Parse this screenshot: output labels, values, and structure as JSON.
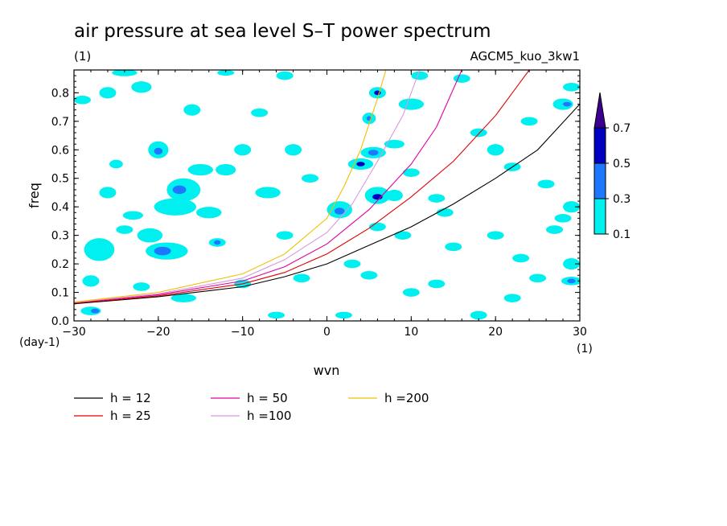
{
  "chart_data": {
    "type": "contour",
    "title": "air pressure at sea level S–T power spectrum",
    "units_label": "(1)",
    "experiment": "AGCM5_kuo_3kw1",
    "xlabel": "wvn",
    "ylabel": "freq",
    "x_unit_label": "(1)",
    "y_unit_label": "(day-1)",
    "xlim": [
      -30,
      30
    ],
    "ylim": [
      0,
      0.88
    ],
    "x_ticks": [
      -30,
      -20,
      -10,
      0,
      10,
      20,
      30
    ],
    "x_tick_labels": [
      "−30",
      "−20",
      "−10",
      "0",
      "10",
      "20",
      "30"
    ],
    "y_ticks": [
      0.0,
      0.1,
      0.2,
      0.3,
      0.4,
      0.5,
      0.6,
      0.7,
      0.8
    ],
    "y_tick_labels": [
      "0.0",
      "0.1",
      "0.2",
      "0.3",
      "0.4",
      "0.5",
      "0.6",
      "0.7",
      "0.8"
    ],
    "colorbar": {
      "levels": [
        0.1,
        0.3,
        0.5,
        0.7
      ],
      "labels": [
        "0.1",
        "0.3",
        "0.5",
        "0.7"
      ],
      "colors": [
        "#00f0f0",
        "#1e78ff",
        "#0000c0",
        "#3c0090"
      ]
    },
    "dispersion_curves": [
      {
        "name": "h = 12",
        "color": "#000000",
        "points": [
          [
            -30,
            0.06
          ],
          [
            -20,
            0.085
          ],
          [
            -10,
            0.12
          ],
          [
            -5,
            0.155
          ],
          [
            0,
            0.2
          ],
          [
            5,
            0.265
          ],
          [
            10,
            0.33
          ],
          [
            15,
            0.41
          ],
          [
            20,
            0.5
          ],
          [
            25,
            0.6
          ],
          [
            30,
            0.76
          ]
        ]
      },
      {
        "name": "h = 25",
        "color": "#e00000",
        "points": [
          [
            -30,
            0.062
          ],
          [
            -20,
            0.088
          ],
          [
            -10,
            0.13
          ],
          [
            -5,
            0.17
          ],
          [
            0,
            0.235
          ],
          [
            5,
            0.325
          ],
          [
            10,
            0.435
          ],
          [
            15,
            0.56
          ],
          [
            20,
            0.72
          ],
          [
            24,
            0.88
          ]
        ]
      },
      {
        "name": "h = 50",
        "color": "#e000a0",
        "points": [
          [
            -30,
            0.064
          ],
          [
            -20,
            0.092
          ],
          [
            -10,
            0.14
          ],
          [
            -5,
            0.19
          ],
          [
            0,
            0.27
          ],
          [
            5,
            0.39
          ],
          [
            10,
            0.55
          ],
          [
            13,
            0.68
          ],
          [
            16,
            0.88
          ]
        ]
      },
      {
        "name": "h =100",
        "color": "#d898e0",
        "points": [
          [
            -30,
            0.065
          ],
          [
            -20,
            0.095
          ],
          [
            -10,
            0.15
          ],
          [
            -5,
            0.215
          ],
          [
            0,
            0.31
          ],
          [
            3,
            0.41
          ],
          [
            6,
            0.56
          ],
          [
            9,
            0.72
          ],
          [
            11,
            0.88
          ]
        ]
      },
      {
        "name": "h =200",
        "color": "#f0c000",
        "points": [
          [
            -30,
            0.066
          ],
          [
            -20,
            0.1
          ],
          [
            -10,
            0.165
          ],
          [
            -5,
            0.235
          ],
          [
            0,
            0.36
          ],
          [
            2,
            0.47
          ],
          [
            4,
            0.6
          ],
          [
            6,
            0.78
          ],
          [
            7,
            0.88
          ]
        ]
      }
    ],
    "contour_blobs": [
      [
        -28,
        0.035,
        1.2,
        0.015,
        1
      ],
      [
        -27.5,
        0.035,
        0.5,
        0.008,
        2
      ],
      [
        -24,
        0.87,
        1.5,
        0.012,
        1
      ],
      [
        -26,
        0.8,
        1,
        0.02,
        1
      ],
      [
        -29,
        0.775,
        1,
        0.015,
        1
      ],
      [
        -22,
        0.82,
        1.2,
        0.02,
        1
      ],
      [
        -27,
        0.25,
        1.8,
        0.04,
        1
      ],
      [
        -28,
        0.14,
        1,
        0.02,
        1
      ],
      [
        -26,
        0.45,
        1,
        0.02,
        1
      ],
      [
        -25,
        0.55,
        0.8,
        0.015,
        1
      ],
      [
        -23,
        0.37,
        1.2,
        0.015,
        1
      ],
      [
        -21,
        0.3,
        1.5,
        0.025,
        1
      ],
      [
        -19,
        0.245,
        2.5,
        0.03,
        1
      ],
      [
        -19.5,
        0.245,
        1,
        0.015,
        2
      ],
      [
        -20,
        0.6,
        1.2,
        0.03,
        1
      ],
      [
        -20,
        0.595,
        0.5,
        0.012,
        2
      ],
      [
        -17,
        0.46,
        2,
        0.04,
        1
      ],
      [
        -17.5,
        0.46,
        0.8,
        0.015,
        2
      ],
      [
        -15,
        0.53,
        1.5,
        0.02,
        1
      ],
      [
        -18,
        0.4,
        2.5,
        0.03,
        1
      ],
      [
        -14,
        0.38,
        1.5,
        0.02,
        1
      ],
      [
        -16,
        0.74,
        1,
        0.02,
        1
      ],
      [
        -12,
        0.87,
        1,
        0.01,
        1
      ],
      [
        -17,
        0.08,
        1.5,
        0.015,
        1
      ],
      [
        -13,
        0.275,
        1,
        0.015,
        1
      ],
      [
        -13,
        0.275,
        0.4,
        0.008,
        2
      ],
      [
        -12,
        0.53,
        1.2,
        0.02,
        1
      ],
      [
        -10,
        0.6,
        1,
        0.02,
        1
      ],
      [
        -8,
        0.73,
        1,
        0.015,
        1
      ],
      [
        -7,
        0.45,
        1.5,
        0.02,
        1
      ],
      [
        -5,
        0.86,
        1,
        0.015,
        1
      ],
      [
        -4,
        0.6,
        1,
        0.02,
        1
      ],
      [
        -2,
        0.5,
        1,
        0.015,
        1
      ],
      [
        -3,
        0.15,
        1,
        0.015,
        1
      ],
      [
        -5,
        0.3,
        1,
        0.015,
        1
      ],
      [
        1.5,
        0.39,
        1.5,
        0.03,
        1
      ],
      [
        1.5,
        0.385,
        0.6,
        0.012,
        2
      ],
      [
        4,
        0.55,
        1.5,
        0.02,
        1
      ],
      [
        4,
        0.55,
        0.5,
        0.008,
        3
      ],
      [
        5.5,
        0.59,
        1.5,
        0.02,
        1
      ],
      [
        5.5,
        0.59,
        0.6,
        0.01,
        2
      ],
      [
        6,
        0.8,
        1,
        0.02,
        1
      ],
      [
        6,
        0.8,
        0.4,
        0.008,
        3
      ],
      [
        5,
        0.71,
        0.8,
        0.02,
        1
      ],
      [
        5,
        0.71,
        0.3,
        0.008,
        2
      ],
      [
        6,
        0.44,
        1.5,
        0.03,
        1
      ],
      [
        6,
        0.435,
        0.6,
        0.01,
        3
      ],
      [
        6,
        0.33,
        1,
        0.015,
        1
      ],
      [
        3,
        0.2,
        1,
        0.015,
        1
      ],
      [
        5,
        0.16,
        1,
        0.015,
        1
      ],
      [
        8,
        0.62,
        1.2,
        0.015,
        1
      ],
      [
        8,
        0.44,
        1,
        0.02,
        1
      ],
      [
        10,
        0.76,
        1.5,
        0.02,
        1
      ],
      [
        11,
        0.86,
        1,
        0.015,
        1
      ],
      [
        10,
        0.52,
        1,
        0.015,
        1
      ],
      [
        9,
        0.3,
        1,
        0.015,
        1
      ],
      [
        13,
        0.43,
        1,
        0.015,
        1
      ],
      [
        14,
        0.38,
        1,
        0.015,
        1
      ],
      [
        15,
        0.26,
        1,
        0.015,
        1
      ],
      [
        13,
        0.13,
        1,
        0.015,
        1
      ],
      [
        16,
        0.85,
        1,
        0.015,
        1
      ],
      [
        18,
        0.66,
        1,
        0.015,
        1
      ],
      [
        20,
        0.6,
        1,
        0.02,
        1
      ],
      [
        22,
        0.54,
        1,
        0.015,
        1
      ],
      [
        24,
        0.7,
        1,
        0.015,
        1
      ],
      [
        26,
        0.48,
        1,
        0.015,
        1
      ],
      [
        28,
        0.36,
        1,
        0.015,
        1
      ],
      [
        29,
        0.4,
        1,
        0.02,
        1
      ],
      [
        28,
        0.76,
        1.2,
        0.02,
        1
      ],
      [
        28.5,
        0.76,
        0.5,
        0.008,
        2
      ],
      [
        29,
        0.82,
        1,
        0.015,
        1
      ],
      [
        27,
        0.32,
        1,
        0.015,
        1
      ],
      [
        29,
        0.2,
        1,
        0.02,
        1
      ],
      [
        29,
        0.14,
        1.2,
        0.015,
        1
      ],
      [
        29,
        0.14,
        0.5,
        0.008,
        2
      ],
      [
        25,
        0.15,
        1,
        0.015,
        1
      ],
      [
        22,
        0.08,
        1,
        0.015,
        1
      ],
      [
        18,
        0.02,
        1,
        0.015,
        1
      ],
      [
        20,
        0.3,
        1,
        0.015,
        1
      ],
      [
        23,
        0.22,
        1,
        0.015,
        1
      ],
      [
        2,
        0.02,
        1,
        0.012,
        1
      ],
      [
        -6,
        0.02,
        1,
        0.012,
        1
      ],
      [
        10,
        0.1,
        1,
        0.015,
        1
      ],
      [
        -10,
        0.13,
        1,
        0.015,
        1
      ],
      [
        -24,
        0.32,
        1,
        0.015,
        1
      ],
      [
        -22,
        0.12,
        1,
        0.015,
        1
      ]
    ]
  }
}
